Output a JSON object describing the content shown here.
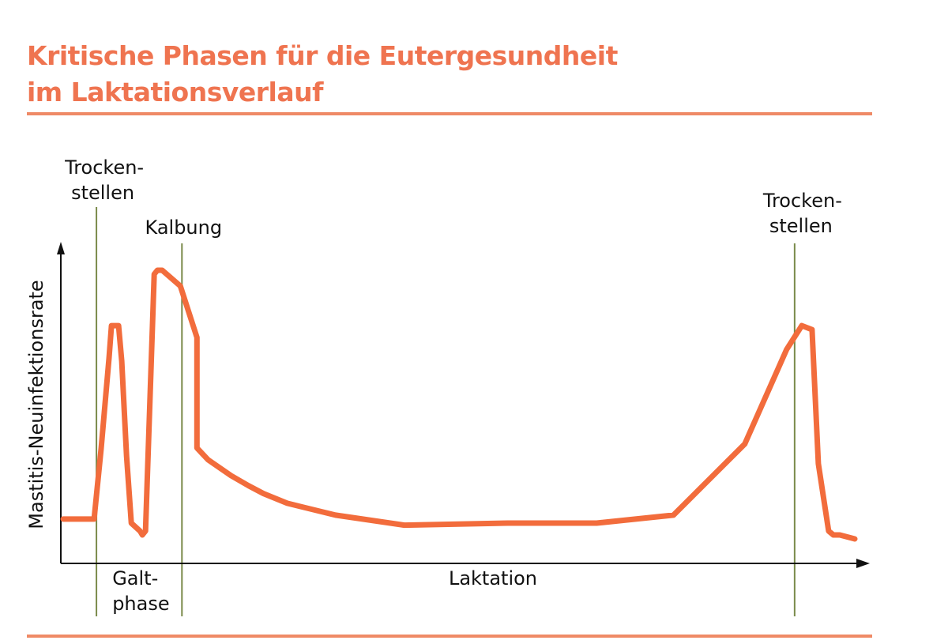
{
  "colors": {
    "accent": "#ef7450",
    "curve": "#f26c3c",
    "marker": "#7a8a4a",
    "axis": "#111111",
    "rule": "#ef8a66"
  },
  "header": {
    "title_line1": "Kritische Phasen für die Eutergesundheit",
    "title_line2": "im Laktationsverlauf"
  },
  "chart_data": {
    "type": "line",
    "title": "Kritische Phasen für die Eutergesundheit im Laktationsverlauf",
    "xlabel": "Laktation",
    "ylabel": "Mastitis-Neuinfektionsrate",
    "axis_ticks": false,
    "grid": false,
    "xlim": [
      0,
      100
    ],
    "ylim": [
      0,
      100
    ],
    "series": [
      {
        "x": [
          0,
          3.9,
          4.8,
          5.8,
          6.1,
          7.0,
          7.4,
          8.0,
          8.6,
          9.7,
          10.0,
          10.4,
          11.5,
          11.9,
          12.5,
          14.8,
          16.9,
          16.9,
          18.3,
          21.2,
          23.4,
          25.3,
          28.3,
          34.4,
          43.1,
          56.2,
          67.4,
          77.1,
          86.1,
          91.4,
          93.3,
          94.6,
          95.4,
          96.7,
          97.3,
          98.1,
          100
        ],
        "y": [
          14.3,
          14.3,
          37.7,
          67.5,
          77.9,
          77.9,
          66.2,
          35.1,
          13.0,
          10.4,
          9.1,
          10.4,
          94.8,
          96.1,
          96.1,
          90.9,
          74.0,
          37.7,
          33.8,
          28.6,
          25.3,
          22.7,
          19.5,
          15.6,
          12.3,
          13.0,
          13.0,
          15.6,
          39.0,
          70.1,
          77.9,
          76.6,
          32.5,
          10.4,
          9.1,
          9.1,
          7.8
        ]
      }
    ],
    "markers": [
      {
        "x": 4.2,
        "label_line1": "Trocken-",
        "label_line2": "stellen"
      },
      {
        "x": 15.0,
        "label_line1": "Kalbung",
        "label_line2": ""
      },
      {
        "x": 92.4,
        "label_line1": "Trocken-",
        "label_line2": "stellen"
      }
    ],
    "annotations": [
      {
        "x": 9.5,
        "label_line1": "Galt-",
        "label_line2": "phase"
      }
    ]
  }
}
